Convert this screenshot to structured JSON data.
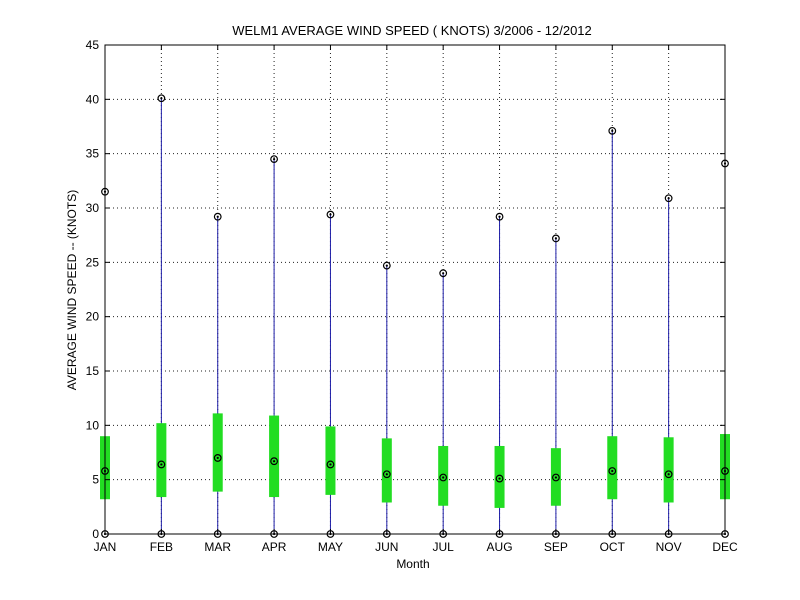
{
  "chart_data": {
    "type": "box",
    "title": "WELM1  AVERAGE WIND SPEED ( KNOTS) 3/2006 - 12/2012",
    "xlabel": "Month",
    "ylabel": "AVERAGE WIND SPEED -- (KNOTS)",
    "ylim": [
      0,
      45
    ],
    "yticks": [
      "0",
      "5",
      "10",
      "15",
      "20",
      "25",
      "30",
      "35",
      "40",
      "45"
    ],
    "grid": true,
    "categories": [
      "JAN",
      "FEB",
      "MAR",
      "APR",
      "MAY",
      "JUN",
      "JUL",
      "AUG",
      "SEP",
      "OCT",
      "NOV",
      "DEC"
    ],
    "min": [
      0,
      0,
      0,
      0,
      0,
      0,
      0,
      0,
      0,
      0,
      0,
      0
    ],
    "q1": [
      3.2,
      3.4,
      3.9,
      3.4,
      3.6,
      2.9,
      2.6,
      2.4,
      2.6,
      3.2,
      2.9,
      3.2
    ],
    "median": [
      5.8,
      6.4,
      7.0,
      6.7,
      6.4,
      5.5,
      5.2,
      5.1,
      5.2,
      5.8,
      5.5,
      5.8
    ],
    "q3": [
      9.0,
      10.2,
      11.1,
      10.9,
      9.9,
      8.8,
      8.1,
      8.1,
      7.9,
      9.0,
      8.9,
      9.2
    ],
    "max": [
      31.5,
      40.1,
      29.2,
      34.5,
      29.4,
      24.7,
      24.0,
      29.2,
      27.2,
      37.1,
      30.9,
      34.1
    ],
    "colors": {
      "whisker": "#1f1fa8",
      "box": "#22dd22",
      "marker": "#000000",
      "grid": "#222222"
    }
  }
}
